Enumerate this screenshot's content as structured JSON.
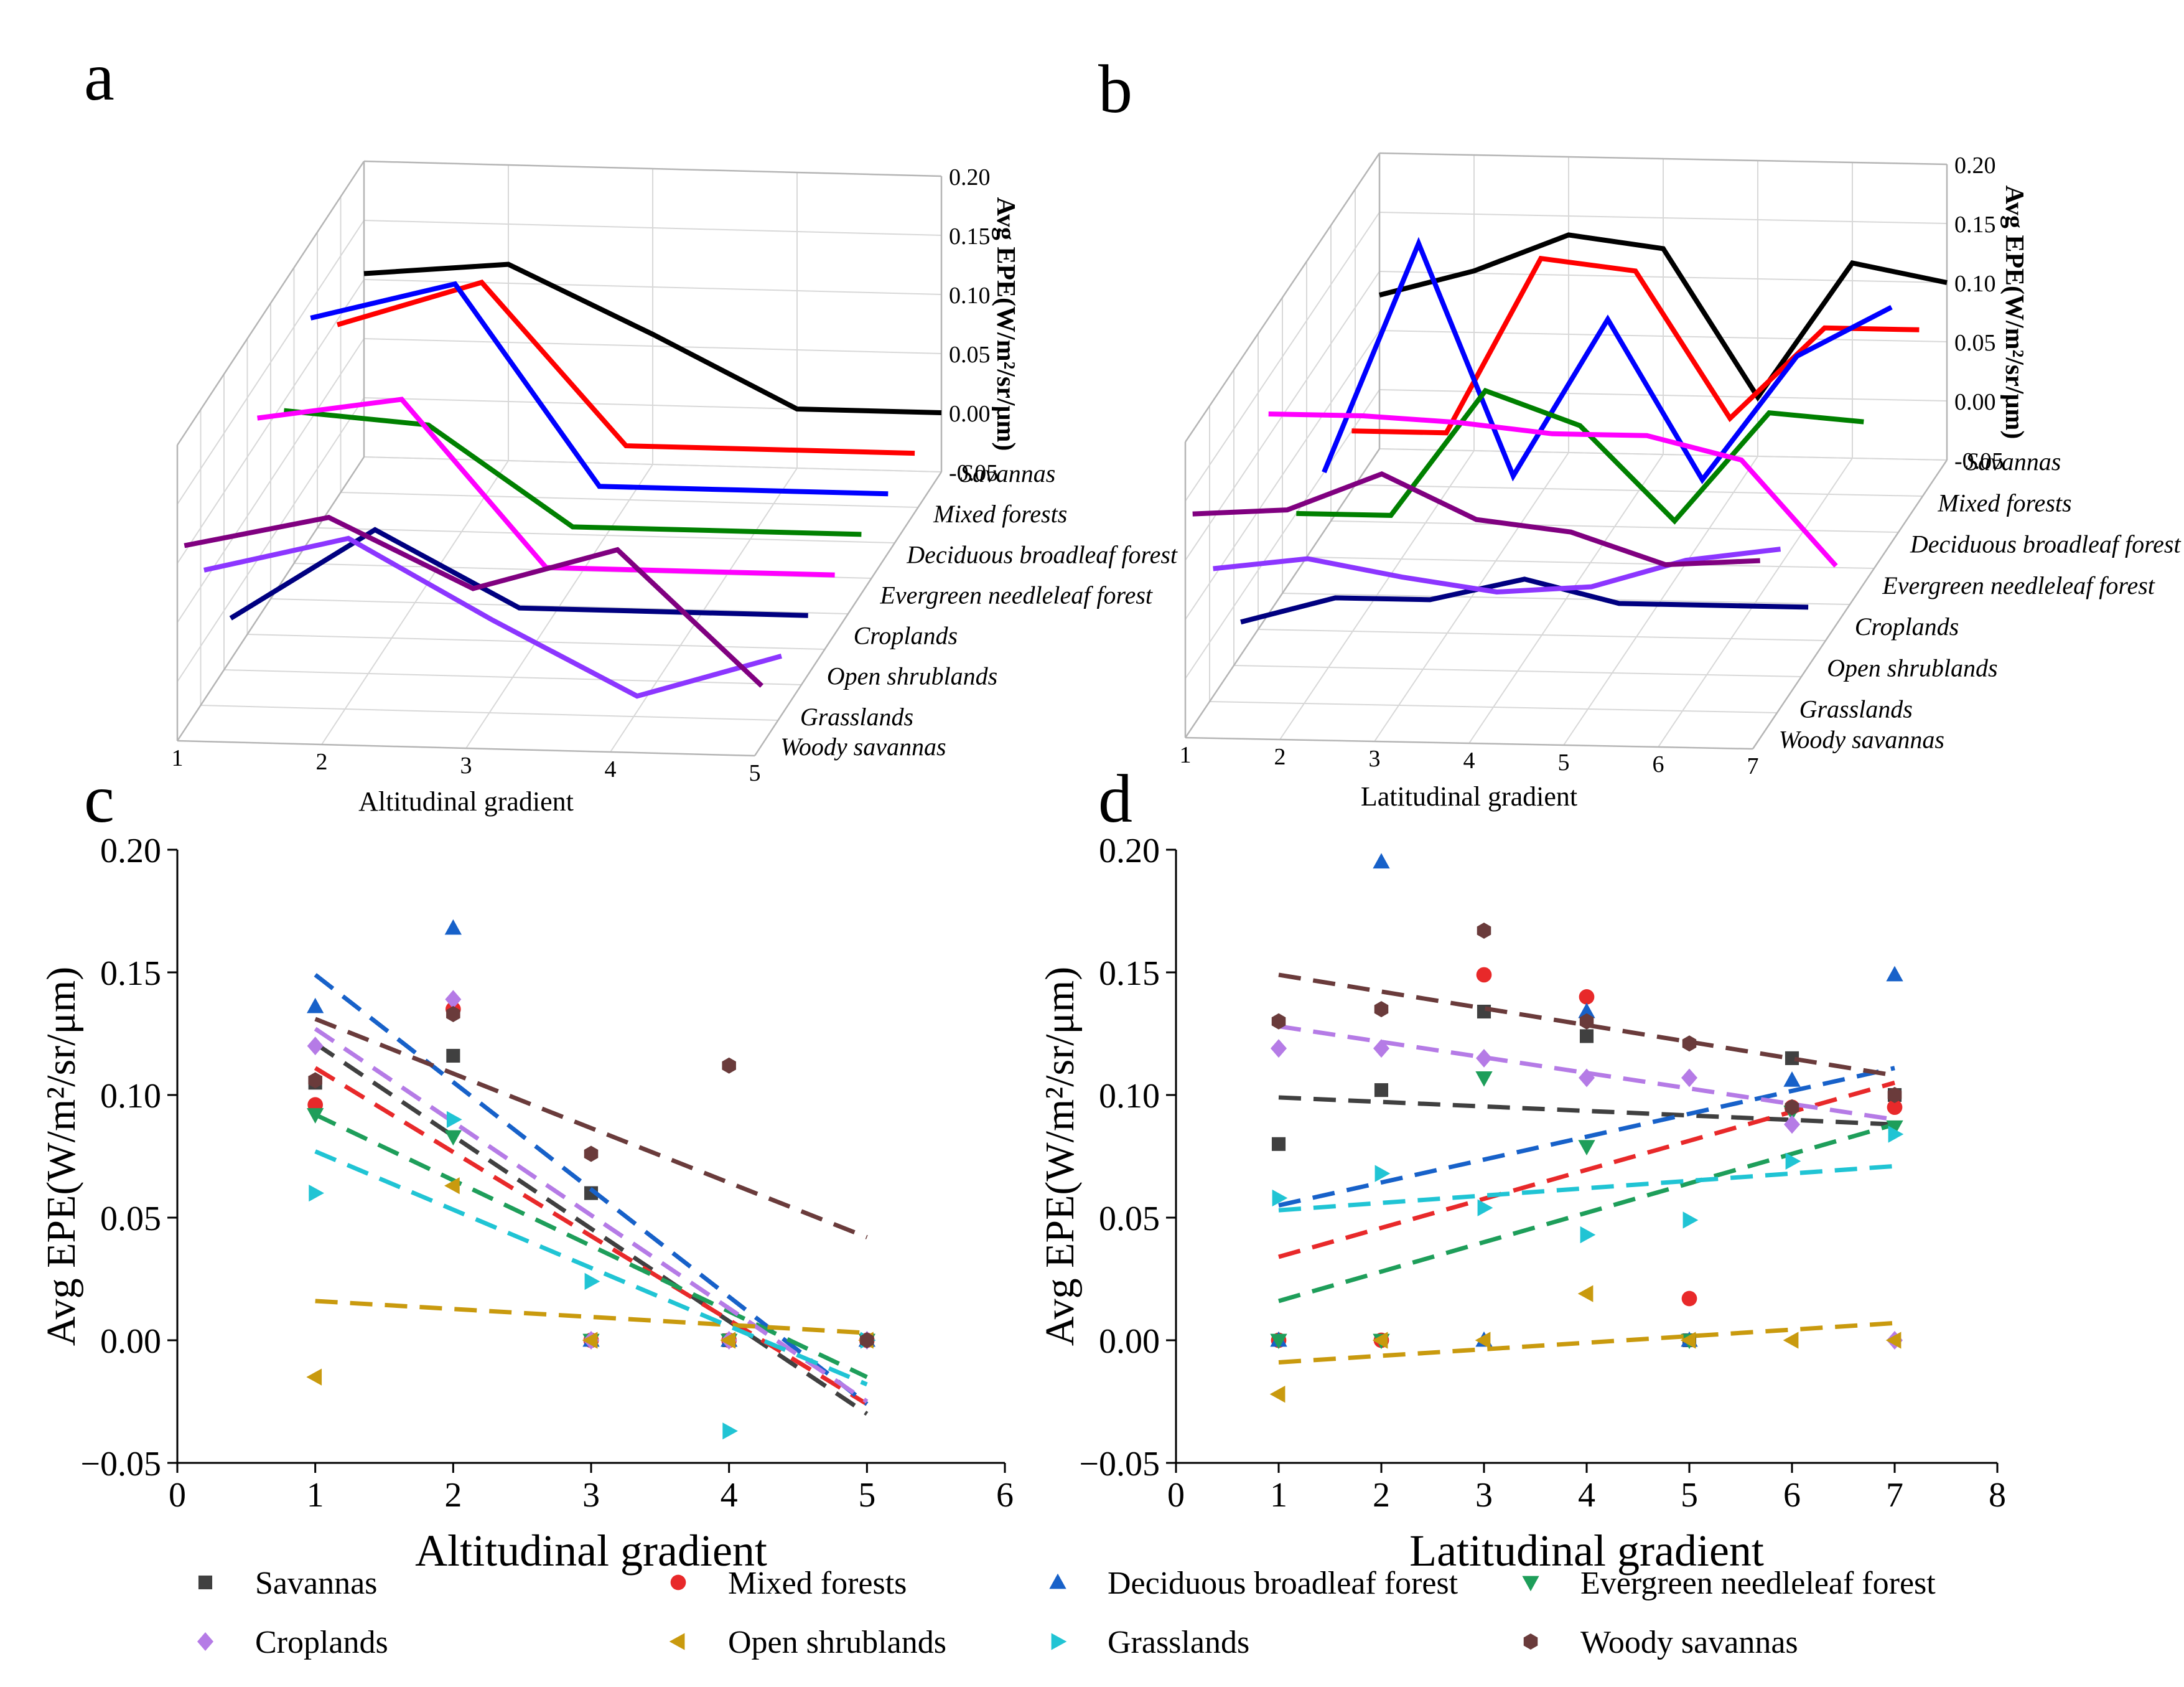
{
  "panels": {
    "a": "a",
    "b": "b",
    "c": "c",
    "d": "d"
  },
  "colors": {
    "Savannas": "#000000",
    "Mixed forests": "#ff0000",
    "Deciduous broadleaf forest": "#0000ff",
    "Evergreen needleleaf forest": "#008000",
    "Croplands": "#ff00ff",
    "Open shrublands": "#000080",
    "Grasslands": "#8c36ff",
    "Woody savannas": "#800080"
  },
  "scatter_colors": {
    "Savannas": "#404040",
    "Mixed forests": "#e8292a",
    "Deciduous broadleaf forest": "#1761c9",
    "Evergreen needleleaf forest": "#1e9e5a",
    "Croplands": "#b57be6",
    "Open shrublands": "#c99a0e",
    "Grasslands": "#20c4d4",
    "Woody savannas": "#6a3b3b"
  },
  "markers": {
    "Savannas": "square",
    "Mixed forests": "circle",
    "Deciduous broadleaf forest": "triangle-up",
    "Evergreen needleleaf forest": "triangle-down",
    "Croplands": "diamond",
    "Open shrublands": "triangle-left",
    "Grasslands": "triangle-right",
    "Woody savannas": "hexagon"
  },
  "legend": {
    "row1": [
      "Savannas",
      "Mixed forests",
      "Deciduous broadleaf forest",
      "Evergreen needleleaf forest"
    ],
    "row2": [
      "Croplands",
      "Open shrublands",
      "Grasslands",
      "Woody savannas"
    ]
  },
  "chart_data": [
    {
      "panel": "a",
      "type": "line",
      "title": "",
      "xlabel": "Altitudinal gradient",
      "zlabel": "Avg EPE(W/m²/sr/μm)",
      "x": [
        1,
        2,
        3,
        4,
        5
      ],
      "xticks": [
        "1",
        "2",
        "3",
        "4",
        "5"
      ],
      "zlim": [
        -0.05,
        0.2
      ],
      "zticks": [
        "0.20",
        "0.15",
        "0.10",
        "0.05",
        "0.00",
        "-0.05"
      ],
      "series": [
        {
          "name": "Savannas",
          "values": [
            0.105,
            0.116,
            0.06,
            0.0,
            0.0
          ]
        },
        {
          "name": "Mixed forests",
          "values": [
            0.096,
            0.135,
            0.0,
            0.0,
            0.0
          ]
        },
        {
          "name": "Deciduous broadleaf forest",
          "values": [
            0.136,
            0.168,
            0.0,
            0.0,
            0.0
          ]
        },
        {
          "name": "Evergreen needleleaf forest",
          "values": [
            0.092,
            0.083,
            0.0,
            0.0,
            0.0
          ]
        },
        {
          "name": "Croplands",
          "values": [
            0.12,
            0.139,
            0.0,
            0.0,
            0.0
          ]
        },
        {
          "name": "Open shrublands",
          "values": [
            -0.015,
            0.063,
            0.0,
            0.0,
            0.0
          ]
        },
        {
          "name": "Grasslands",
          "values": [
            0.06,
            0.09,
            0.024,
            -0.037,
            0.0
          ]
        },
        {
          "name": "Woody savannas",
          "values": [
            0.106,
            0.133,
            0.076,
            0.112,
            0.0
          ]
        }
      ]
    },
    {
      "panel": "b",
      "type": "line",
      "title": "",
      "xlabel": "Latitudinal gradient",
      "zlabel": "Avg EPE(W/m²/sr/μm)",
      "x": [
        1,
        2,
        3,
        4,
        5,
        6,
        7
      ],
      "xticks": [
        "1",
        "2",
        "3",
        "4",
        "5",
        "6",
        "7"
      ],
      "zlim": [
        -0.05,
        0.2
      ],
      "zticks": [
        "0.20",
        "0.15",
        "0.10",
        "0.05",
        "0.00",
        "-0.05"
      ],
      "series": [
        {
          "name": "Savannas",
          "values": [
            0.08,
            0.102,
            0.134,
            0.124,
            0.0,
            0.115,
            0.1
          ]
        },
        {
          "name": "Mixed forests",
          "values": [
            0.0,
            0.0,
            0.149,
            0.14,
            0.017,
            0.095,
            0.095
          ]
        },
        {
          "name": "Deciduous broadleaf forest",
          "values": [
            0.0,
            0.195,
            0.0,
            0.134,
            0.0,
            0.106,
            0.149
          ]
        },
        {
          "name": "Evergreen needleleaf forest",
          "values": [
            0.0,
            0.0,
            0.107,
            0.079,
            0.0,
            0.093,
            0.087
          ]
        },
        {
          "name": "Croplands",
          "values": [
            0.119,
            0.119,
            0.115,
            0.107,
            0.107,
            0.088,
            0.0
          ]
        },
        {
          "name": "Open shrublands",
          "values": [
            -0.022,
            0.0,
            0.0,
            0.019,
            0.0,
            0.0,
            0.0
          ]
        },
        {
          "name": "Grasslands",
          "values": [
            0.058,
            0.068,
            0.054,
            0.043,
            0.049,
            0.073,
            0.084
          ]
        },
        {
          "name": "Woody savannas",
          "values": [
            0.13,
            0.135,
            0.167,
            0.13,
            0.121,
            0.095,
            0.1
          ]
        }
      ]
    },
    {
      "panel": "c",
      "type": "scatter",
      "title": "",
      "xlabel": "Altitudinal gradient",
      "ylabel": "Avg EPE(W/m²/sr/μm)",
      "xlim": [
        0,
        6
      ],
      "ylim": [
        -0.05,
        0.2
      ],
      "xticks": [
        "0",
        "1",
        "2",
        "3",
        "4",
        "5",
        "6"
      ],
      "yticks": [
        "0.20",
        "0.15",
        "0.10",
        "0.05",
        "0.00",
        "−0.05"
      ],
      "x": [
        1,
        2,
        3,
        4,
        5
      ],
      "series": [
        {
          "name": "Savannas",
          "values": [
            0.105,
            0.116,
            0.06,
            0.0,
            0.0
          ],
          "fit": [
            0.121,
            -0.03
          ]
        },
        {
          "name": "Mixed forests",
          "values": [
            0.096,
            0.135,
            0.0,
            0.0,
            0.0
          ],
          "fit": [
            0.111,
            -0.026
          ]
        },
        {
          "name": "Deciduous broadleaf forest",
          "values": [
            0.136,
            0.168,
            0.0,
            0.0,
            0.0
          ],
          "fit": [
            0.149,
            -0.026
          ]
        },
        {
          "name": "Evergreen needleleaf forest",
          "values": [
            0.092,
            0.083,
            0.0,
            0.0,
            0.0
          ],
          "fit": [
            0.092,
            -0.015
          ]
        },
        {
          "name": "Croplands",
          "values": [
            0.12,
            0.139,
            0.0,
            0.0,
            0.0
          ],
          "fit": [
            0.127,
            -0.025
          ]
        },
        {
          "name": "Open shrublands",
          "values": [
            -0.015,
            0.063,
            0.0,
            0.0,
            0.0
          ],
          "fit": [
            0.016,
            0.003
          ]
        },
        {
          "name": "Grasslands",
          "values": [
            0.06,
            0.09,
            0.024,
            -0.037,
            0.0
          ],
          "fit": [
            0.077,
            -0.018
          ]
        },
        {
          "name": "Woody savannas",
          "values": [
            0.106,
            0.133,
            0.076,
            0.112,
            0.0
          ],
          "fit": [
            0.131,
            0.042
          ]
        }
      ]
    },
    {
      "panel": "d",
      "type": "scatter",
      "title": "",
      "xlabel": "Latitudinal gradient",
      "ylabel": "Avg EPE(W/m²/sr/μm)",
      "xlim": [
        0,
        8
      ],
      "ylim": [
        -0.05,
        0.2
      ],
      "xticks": [
        "0",
        "1",
        "2",
        "3",
        "4",
        "5",
        "6",
        "7",
        "8"
      ],
      "yticks": [
        "0.20",
        "0.15",
        "0.10",
        "0.05",
        "0.00",
        "−0.05"
      ],
      "x": [
        1,
        2,
        3,
        4,
        5,
        6,
        7
      ],
      "series": [
        {
          "name": "Savannas",
          "values": [
            0.08,
            0.102,
            0.134,
            0.124,
            0.0,
            0.115,
            0.1
          ],
          "fit": [
            0.099,
            0.088
          ]
        },
        {
          "name": "Mixed forests",
          "values": [
            0.0,
            0.0,
            0.149,
            0.14,
            0.017,
            0.095,
            0.095
          ],
          "fit": [
            0.034,
            0.105
          ]
        },
        {
          "name": "Deciduous broadleaf forest",
          "values": [
            0.0,
            0.195,
            0.0,
            0.134,
            0.0,
            0.106,
            0.149
          ],
          "fit": [
            0.055,
            0.111
          ]
        },
        {
          "name": "Evergreen needleleaf forest",
          "values": [
            0.0,
            0.0,
            0.107,
            0.079,
            0.0,
            0.093,
            0.087
          ],
          "fit": [
            0.016,
            0.088
          ]
        },
        {
          "name": "Croplands",
          "values": [
            0.119,
            0.119,
            0.115,
            0.107,
            0.107,
            0.088,
            0.0
          ],
          "fit": [
            0.128,
            0.09
          ]
        },
        {
          "name": "Open shrublands",
          "values": [
            -0.022,
            0.0,
            0.0,
            0.019,
            0.0,
            0.0,
            0.0
          ],
          "fit": [
            -0.009,
            0.007
          ]
        },
        {
          "name": "Grasslands",
          "values": [
            0.058,
            0.068,
            0.054,
            0.043,
            0.049,
            0.073,
            0.084
          ],
          "fit": [
            0.053,
            0.071
          ]
        },
        {
          "name": "Woody savannas",
          "values": [
            0.13,
            0.135,
            0.167,
            0.13,
            0.121,
            0.095,
            0.1
          ],
          "fit": [
            0.149,
            0.108
          ]
        }
      ]
    }
  ]
}
